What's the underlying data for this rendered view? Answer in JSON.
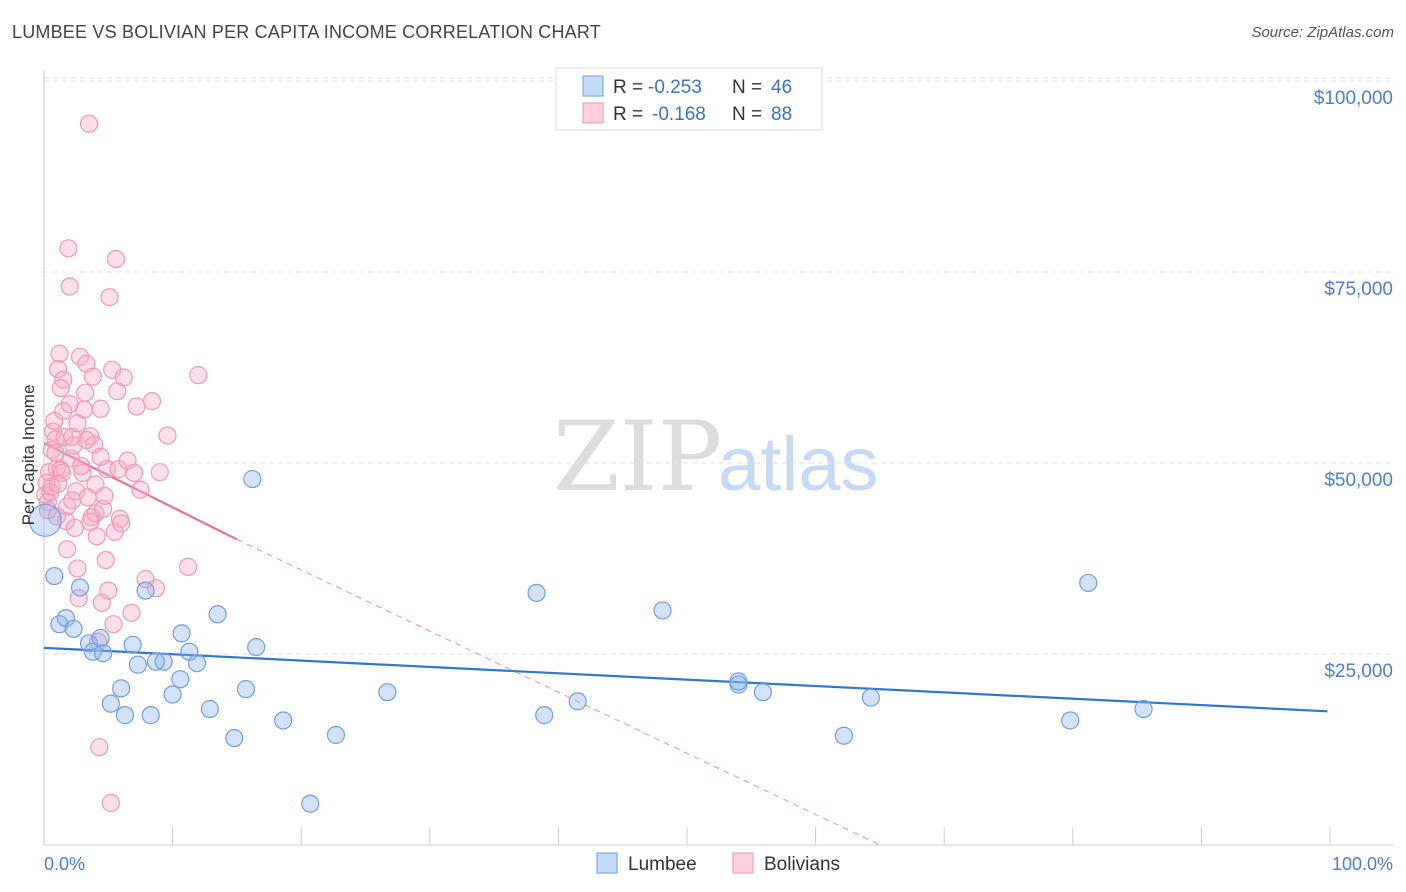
{
  "title": "LUMBEE VS BOLIVIAN PER CAPITA INCOME CORRELATION CHART",
  "source": "Source: ZipAtlas.com",
  "watermark": {
    "zip": "ZIP",
    "atlas": "atlas"
  },
  "legend_top": [
    {
      "r_label": "R =",
      "r_value": "-0.253",
      "n_label": "N =",
      "n_value": "46"
    },
    {
      "r_label": "R =",
      "r_value": "-0.168",
      "n_label": "N =",
      "n_value": "88"
    }
  ],
  "legend_bottom": [
    "Lumbee",
    "Bolivians"
  ],
  "colors": {
    "lumbee": "#7aaae8",
    "lumbee_line": "#2f78cc",
    "bolivians": "#f0a0bc",
    "bolivians_line": "#e8719a",
    "tick_text": "#4a7fd0"
  },
  "chart_data": {
    "type": "scatter",
    "title": "LUMBEE VS BOLIVIAN PER CAPITA INCOME CORRELATION CHART",
    "xlabel": "",
    "ylabel": "Per Capita Income",
    "xlim": [
      0,
      100
    ],
    "ylim": [
      0,
      105000
    ],
    "x_tick_labels": [
      "0.0%",
      "100.0%"
    ],
    "y_ticks": [
      25000,
      50000,
      75000,
      100000
    ],
    "y_tick_labels": [
      "$25,000",
      "$50,000",
      "$75,000",
      "$100,000"
    ],
    "series": [
      {
        "name": "Lumbee",
        "r": -0.253,
        "n": 46,
        "trend": {
          "x0": 0,
          "y0": 25800,
          "x1": 99.8,
          "y1": 17500
        },
        "points": [
          [
            0.1,
            42500
          ],
          [
            0.8,
            35200
          ],
          [
            1.2,
            28900
          ],
          [
            1.7,
            29700
          ],
          [
            2.3,
            28300
          ],
          [
            2.8,
            33700
          ],
          [
            3.5,
            26400
          ],
          [
            3.8,
            25300
          ],
          [
            4.4,
            27100
          ],
          [
            4.6,
            25100
          ],
          [
            5.2,
            18500
          ],
          [
            6.0,
            20500
          ],
          [
            6.3,
            17000
          ],
          [
            6.9,
            26200
          ],
          [
            7.3,
            23600
          ],
          [
            7.9,
            33300
          ],
          [
            8.3,
            17000
          ],
          [
            8.7,
            24000
          ],
          [
            9.3,
            24000
          ],
          [
            10.0,
            19700
          ],
          [
            10.6,
            21700
          ],
          [
            10.7,
            27700
          ],
          [
            11.3,
            25300
          ],
          [
            11.9,
            23800
          ],
          [
            12.9,
            17800
          ],
          [
            13.5,
            30200
          ],
          [
            14.8,
            14000
          ],
          [
            15.7,
            20400
          ],
          [
            16.2,
            47900
          ],
          [
            16.5,
            25900
          ],
          [
            18.6,
            16300
          ],
          [
            20.7,
            5400
          ],
          [
            22.7,
            14400
          ],
          [
            26.7,
            20000
          ],
          [
            38.3,
            33000
          ],
          [
            38.9,
            17000
          ],
          [
            41.5,
            18800
          ],
          [
            48.1,
            30700
          ],
          [
            54.0,
            21000
          ],
          [
            54.0,
            21400
          ],
          [
            55.9,
            20000
          ],
          [
            62.2,
            14300
          ],
          [
            64.3,
            19300
          ],
          [
            79.8,
            16300
          ],
          [
            81.2,
            34300
          ],
          [
            85.5,
            17800
          ]
        ]
      },
      {
        "name": "Bolivians",
        "r": -0.168,
        "n": 88,
        "trend": {
          "x0": 0,
          "y0": 52600,
          "x1": 15,
          "y1": 40000
        },
        "trend_ext": {
          "x0": 15,
          "y0": 40000,
          "x1": 65,
          "y1": 0
        },
        "points": [
          [
            0.1,
            45800
          ],
          [
            0.2,
            47400
          ],
          [
            0.3,
            44900
          ],
          [
            0.4,
            48800
          ],
          [
            0.5,
            46200
          ],
          [
            0.6,
            51700
          ],
          [
            0.7,
            54100
          ],
          [
            0.8,
            55500
          ],
          [
            0.9,
            53100
          ],
          [
            1.0,
            49300
          ],
          [
            1.1,
            62300
          ],
          [
            1.2,
            64300
          ],
          [
            1.3,
            49100
          ],
          [
            1.4,
            48700
          ],
          [
            1.5,
            60900
          ],
          [
            1.6,
            53400
          ],
          [
            1.7,
            42400
          ],
          [
            1.8,
            38700
          ],
          [
            1.9,
            78100
          ],
          [
            2.0,
            73100
          ],
          [
            2.1,
            50600
          ],
          [
            2.2,
            53400
          ],
          [
            2.3,
            52300
          ],
          [
            2.4,
            41500
          ],
          [
            2.5,
            46300
          ],
          [
            2.6,
            36200
          ],
          [
            2.7,
            32300
          ],
          [
            2.8,
            63900
          ],
          [
            3.0,
            48700
          ],
          [
            3.1,
            57000
          ],
          [
            3.2,
            59200
          ],
          [
            3.3,
            63000
          ],
          [
            3.4,
            45500
          ],
          [
            3.5,
            94400
          ],
          [
            3.6,
            53500
          ],
          [
            3.7,
            42900
          ],
          [
            3.8,
            61300
          ],
          [
            3.9,
            52400
          ],
          [
            4.0,
            43400
          ],
          [
            4.1,
            40400
          ],
          [
            4.2,
            26600
          ],
          [
            4.3,
            12800
          ],
          [
            4.4,
            57100
          ],
          [
            4.5,
            31700
          ],
          [
            4.6,
            44000
          ],
          [
            4.7,
            45700
          ],
          [
            4.8,
            37300
          ],
          [
            4.9,
            49200
          ],
          [
            5.0,
            33300
          ],
          [
            5.1,
            71700
          ],
          [
            5.2,
            5500
          ],
          [
            5.3,
            62200
          ],
          [
            5.4,
            28900
          ],
          [
            5.5,
            41000
          ],
          [
            5.6,
            76700
          ],
          [
            5.7,
            59400
          ],
          [
            5.8,
            49200
          ],
          [
            5.9,
            42700
          ],
          [
            6.2,
            61200
          ],
          [
            6.5,
            50300
          ],
          [
            6.8,
            30400
          ],
          [
            7.0,
            48700
          ],
          [
            7.2,
            57400
          ],
          [
            7.5,
            46500
          ],
          [
            7.9,
            34800
          ],
          [
            8.4,
            58100
          ],
          [
            8.7,
            33600
          ],
          [
            9.0,
            48800
          ],
          [
            9.6,
            53600
          ],
          [
            11.2,
            36400
          ],
          [
            12.0,
            61500
          ],
          [
            0.3,
            43800
          ],
          [
            0.6,
            46900
          ],
          [
            0.9,
            51300
          ],
          [
            1.1,
            47300
          ],
          [
            1.5,
            56800
          ],
          [
            1.8,
            44300
          ],
          [
            2.2,
            45100
          ],
          [
            2.6,
            55200
          ],
          [
            2.9,
            49600
          ],
          [
            3.3,
            53000
          ],
          [
            3.6,
            42300
          ],
          [
            4.0,
            47200
          ],
          [
            4.4,
            50800
          ],
          [
            1.0,
            43000
          ],
          [
            1.3,
            59800
          ],
          [
            2.0,
            57700
          ],
          [
            6.0,
            42100
          ]
        ]
      }
    ]
  }
}
